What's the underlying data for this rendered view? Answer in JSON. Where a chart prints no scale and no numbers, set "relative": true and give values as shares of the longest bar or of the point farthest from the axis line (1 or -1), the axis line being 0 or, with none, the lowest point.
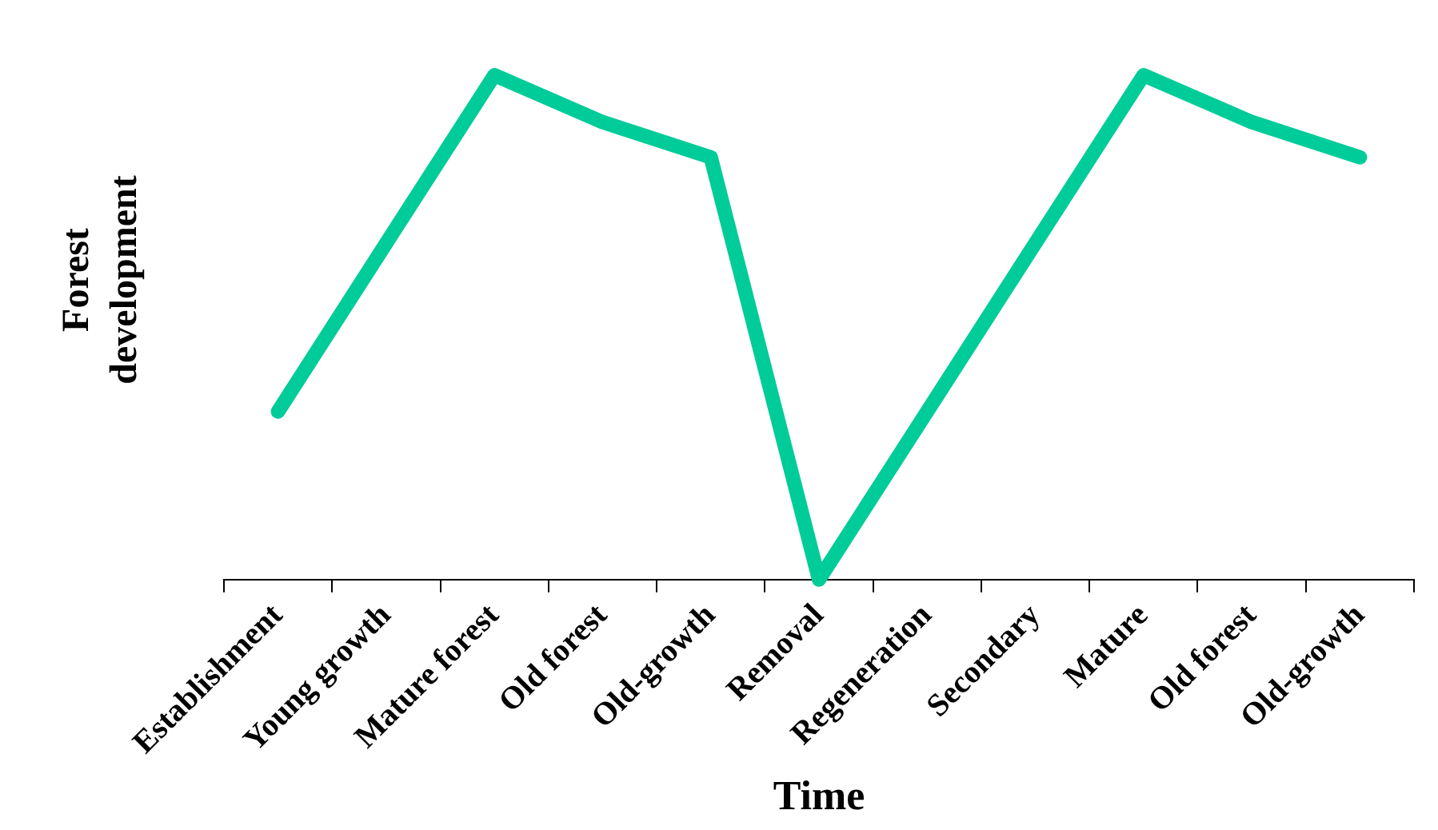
{
  "chart_data": {
    "type": "line",
    "relative": true,
    "xlabel": "Time",
    "ylabel": "Forest development",
    "categories": [
      "Establishment",
      "Young growth",
      "Mature forest",
      "Old forest",
      "Old-growth",
      "Removal",
      "Regeneration",
      "Secondary",
      "Mature",
      "Old forest",
      "Old-growth"
    ],
    "series": [
      {
        "color": "#00cc99",
        "values": [
          0.333,
          0.667,
          1,
          0.907,
          0.837,
          0,
          0.333,
          0.667,
          1,
          0.907,
          0.837
        ]
      }
    ],
    "legend": false,
    "tick_labels": "x",
    "marker": "none",
    "line_style": "solid"
  }
}
